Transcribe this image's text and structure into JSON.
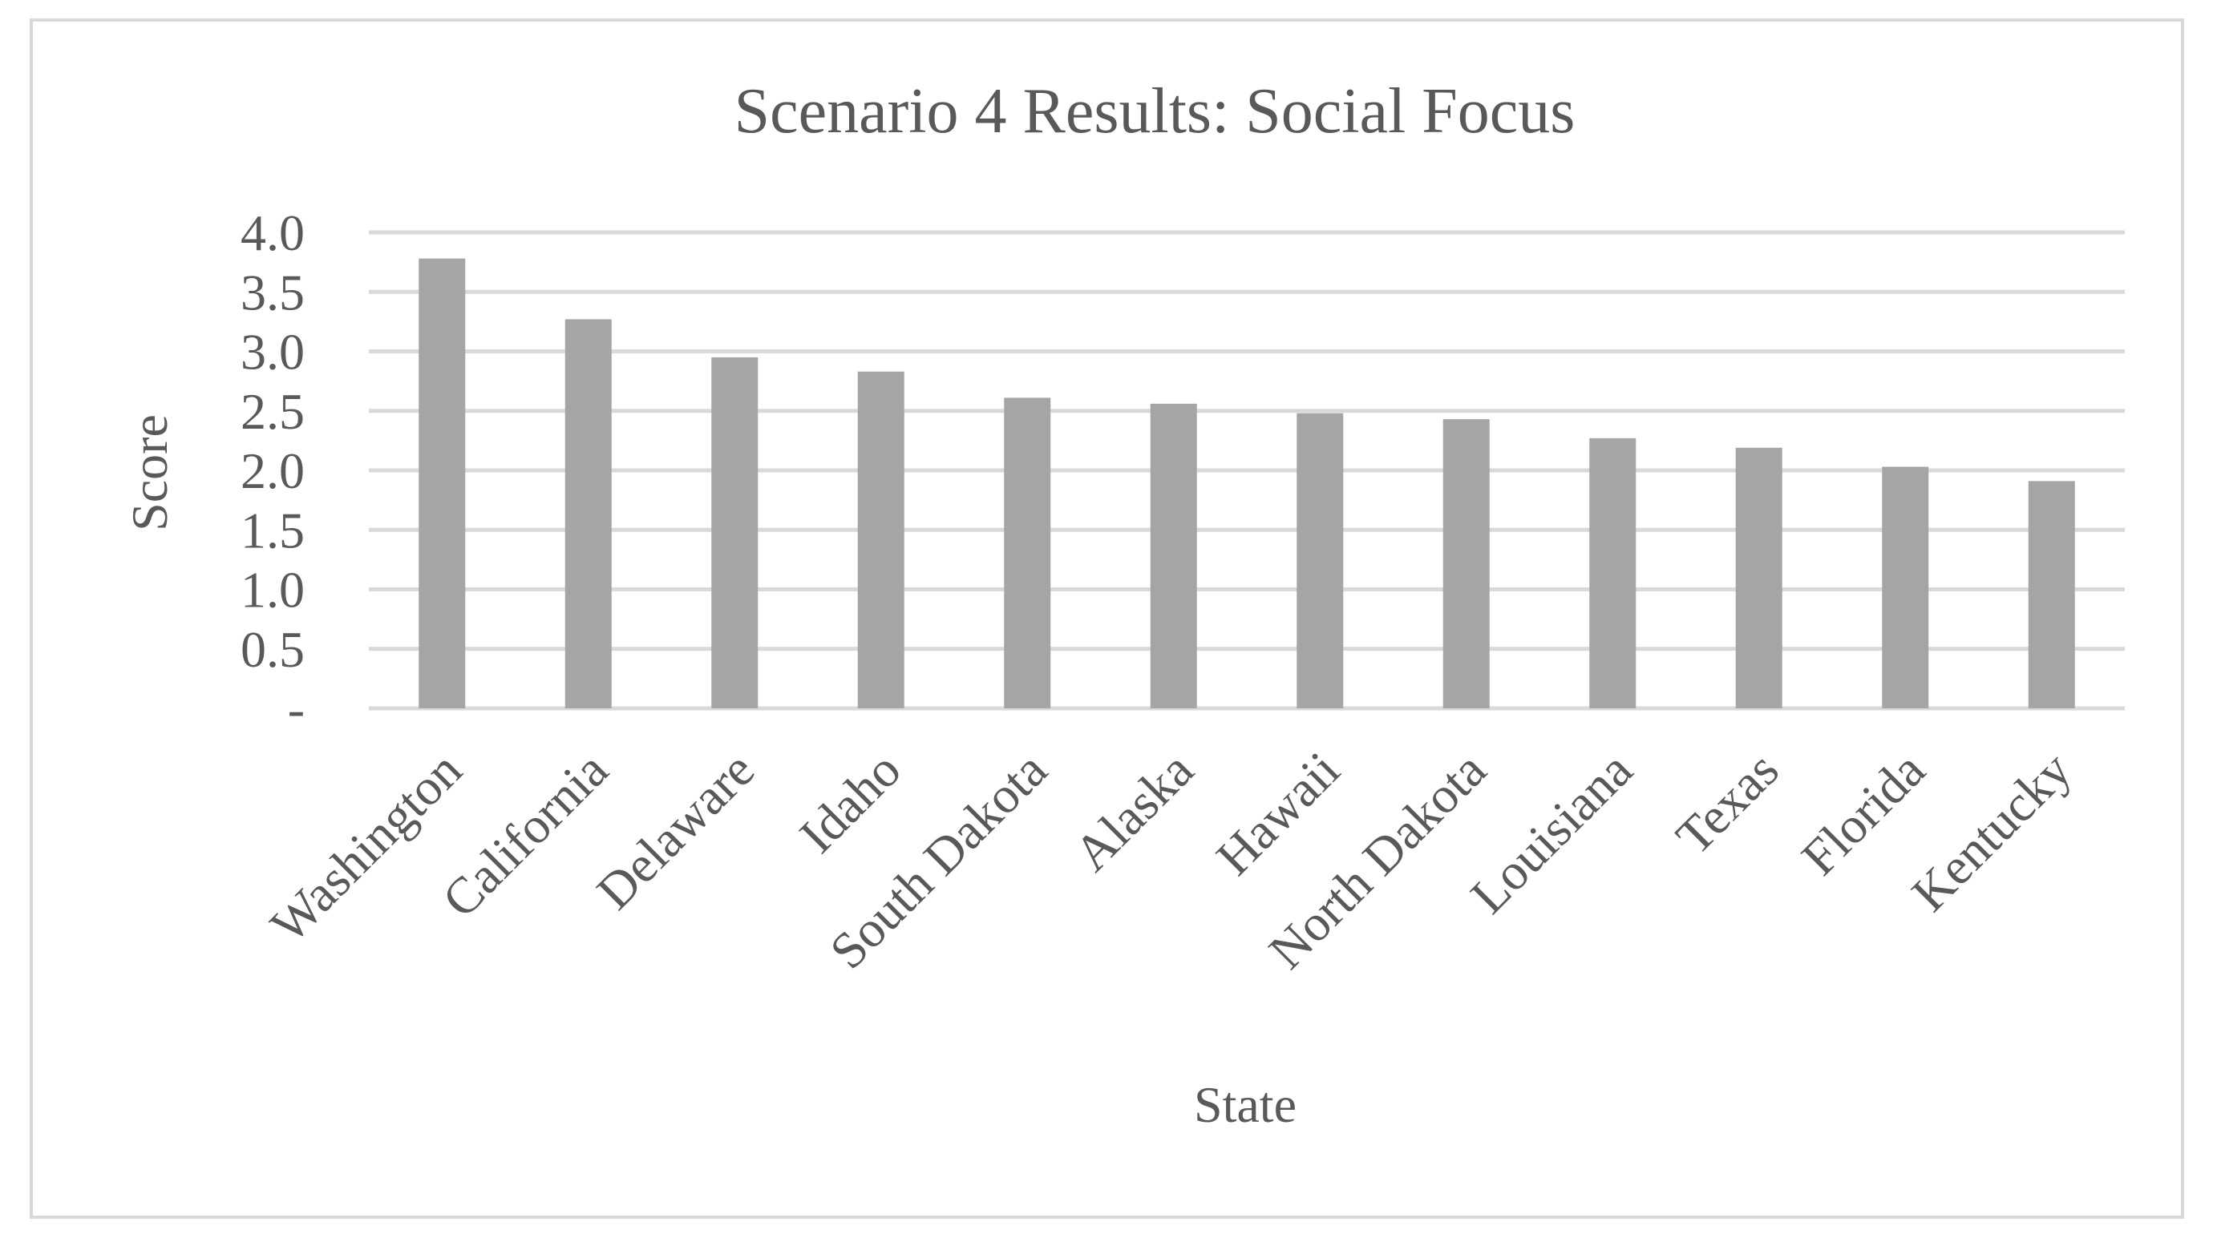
{
  "chart_data": {
    "type": "bar",
    "title": "Scenario 4 Results: Social Focus",
    "xlabel": "State",
    "ylabel": "Score",
    "categories": [
      "Washington",
      "California",
      "Delaware",
      "Idaho",
      "South Dakota",
      "Alaska",
      "Hawaii",
      "North Dakota",
      "Louisiana",
      "Texas",
      "Florida",
      "Kentucky"
    ],
    "values": [
      3.78,
      3.27,
      2.95,
      2.83,
      2.61,
      2.56,
      2.48,
      2.43,
      2.27,
      2.19,
      2.03,
      1.91
    ],
    "ylim": [
      0,
      4.0
    ],
    "yticks": [
      "-",
      "0.5",
      "1.0",
      "1.5",
      "2.0",
      "2.5",
      "3.0",
      "3.5",
      "4.0"
    ],
    "grid": true,
    "legend": "none",
    "colors": {
      "bar": "#a5a5a5",
      "gridline": "#d9d9d9",
      "text": "#595959",
      "border": "#d9d9d9"
    }
  }
}
